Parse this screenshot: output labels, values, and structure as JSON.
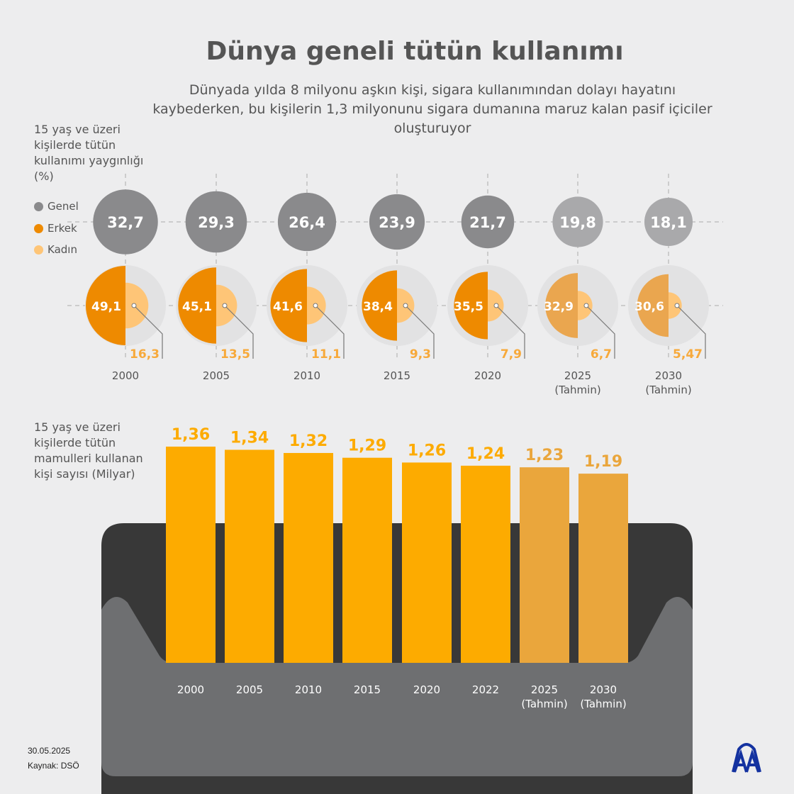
{
  "title": "Dünya geneli tütün kullanımı",
  "subtitle": "Dünyada yılda 8 milyonu aşkın kişi, sigara kullanımından dolayı hayatını kaybederken, bu kişilerin 1,3 milyonunu sigara dumanına maruz kalan pasif içiciler oluşturuyor",
  "footer": {
    "date": "30.05.2025",
    "source": "Kaynak: DSÖ",
    "logo": "AA"
  },
  "colors": {
    "genel": "#8a8a8c",
    "genel_forecast": "#a9a9ab",
    "erkek": "#ee8a00",
    "erkek_forecast": "#eaa64f",
    "kadin": "#fec577",
    "bar": "#fdab00",
    "bar_forecast": "#eaa63c"
  },
  "chart_data": [
    {
      "type": "proportional-circles",
      "ylabel": "15 yaş ve üzeri kişilerde tütün kullanımı yaygınlığı (%)",
      "legend": [
        "Genel",
        "Erkek",
        "Kadın"
      ],
      "categories": [
        "2000",
        "2005",
        "2010",
        "2015",
        "2020",
        "2025 (Tahmin)",
        "2030 (Tahmin)"
      ],
      "series": [
        {
          "name": "Genel",
          "values": [
            32.7,
            29.3,
            26.4,
            23.9,
            21.7,
            19.8,
            18.1
          ],
          "labels": [
            "32,7",
            "29,3",
            "26,4",
            "23,9",
            "21,7",
            "19,8",
            "18,1"
          ]
        },
        {
          "name": "Erkek",
          "values": [
            49.1,
            45.1,
            41.6,
            38.4,
            35.5,
            32.9,
            30.6
          ],
          "labels": [
            "49,1",
            "45,1",
            "41,6",
            "38,4",
            "35,5",
            "32,9",
            "30,6"
          ]
        },
        {
          "name": "Kadın",
          "values": [
            16.3,
            13.5,
            11.1,
            9.3,
            7.9,
            6.7,
            5.47
          ],
          "labels": [
            "16,3",
            "13,5",
            "11,1",
            "9,3",
            "7,9",
            "6,7",
            "5,47"
          ]
        }
      ]
    },
    {
      "type": "bar",
      "ylabel": "15 yaş ve üzeri kişilerde tütün mamulleri kullanan kişi sayısı (Milyar)",
      "categories": [
        "2000",
        "2005",
        "2010",
        "2015",
        "2020",
        "2022",
        "2025 (Tahmin)",
        "2030 (Tahmin)"
      ],
      "values": [
        1.36,
        1.34,
        1.32,
        1.29,
        1.26,
        1.24,
        1.23,
        1.19
      ],
      "labels": [
        "1,36",
        "1,34",
        "1,32",
        "1,29",
        "1,26",
        "1,24",
        "1,23",
        "1,19"
      ],
      "ylim": [
        0,
        1.36
      ]
    }
  ]
}
